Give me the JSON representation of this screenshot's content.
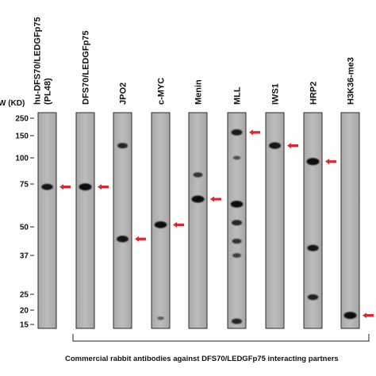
{
  "mw_header": "W (KD)",
  "mw_markers": [
    {
      "kd": 250,
      "label": "250"
    },
    {
      "kd": 150,
      "label": "150"
    },
    {
      "kd": 100,
      "label": "100"
    },
    {
      "kd": 75,
      "label": "75"
    },
    {
      "kd": 50,
      "label": "50"
    },
    {
      "kd": 37,
      "label": "37"
    },
    {
      "kd": 25,
      "label": "25"
    },
    {
      "kd": 20,
      "label": "20"
    },
    {
      "kd": 15,
      "label": "15"
    }
  ],
  "lanes": [
    {
      "label_lines": [
        "hu-DFS70/LEDGFp75",
        "(PL48)"
      ],
      "bands": [
        {
          "kd": 73,
          "strength": 0.85,
          "arrow": true
        }
      ]
    },
    {
      "label_lines": [
        "DFS70/LEDGFp75"
      ],
      "bands": [
        {
          "kd": 73,
          "strength": 1.0,
          "arrow": true
        }
      ]
    },
    {
      "label_lines": [
        "JPO2"
      ],
      "bands": [
        {
          "kd": 125,
          "strength": 0.7,
          "arrow": false
        },
        {
          "kd": 44,
          "strength": 0.9,
          "arrow": true
        }
      ]
    },
    {
      "label_lines": [
        "c-MYC"
      ],
      "bands": [
        {
          "kd": 51,
          "strength": 0.95,
          "arrow": true
        },
        {
          "kd": 17,
          "strength": 0.25,
          "arrow": false
        }
      ]
    },
    {
      "label_lines": [
        "Menin"
      ],
      "bands": [
        {
          "kd": 83,
          "strength": 0.6,
          "arrow": false
        },
        {
          "kd": 65,
          "strength": 1.0,
          "arrow": true
        }
      ]
    },
    {
      "label_lines": [
        "MLL"
      ],
      "bands": [
        {
          "kd": 165,
          "strength": 0.8,
          "arrow": true
        },
        {
          "kd": 100,
          "strength": 0.35,
          "arrow": false
        },
        {
          "kd": 62,
          "strength": 0.95,
          "arrow": false
        },
        {
          "kd": 52,
          "strength": 0.7,
          "arrow": false
        },
        {
          "kd": 43,
          "strength": 0.6,
          "arrow": false
        },
        {
          "kd": 37,
          "strength": 0.5,
          "arrow": false
        },
        {
          "kd": 16,
          "strength": 0.7,
          "arrow": false
        }
      ]
    },
    {
      "label_lines": [
        "IWS1"
      ],
      "bands": [
        {
          "kd": 125,
          "strength": 0.9,
          "arrow": true
        }
      ]
    },
    {
      "label_lines": [
        "HRP2"
      ],
      "bands": [
        {
          "kd": 96,
          "strength": 1.0,
          "arrow": true
        },
        {
          "kd": 40,
          "strength": 0.85,
          "arrow": false
        },
        {
          "kd": 24,
          "strength": 0.75,
          "arrow": false
        }
      ]
    },
    {
      "label_lines": [
        "H3K36-me3"
      ],
      "bands": [
        {
          "kd": 18,
          "strength": 1.0,
          "arrow": true
        }
      ]
    }
  ],
  "arrow_color": "#e0262b",
  "caption": "Commercial rabbit antibodies against DFS70/LEDGFp75 interacting partners"
}
